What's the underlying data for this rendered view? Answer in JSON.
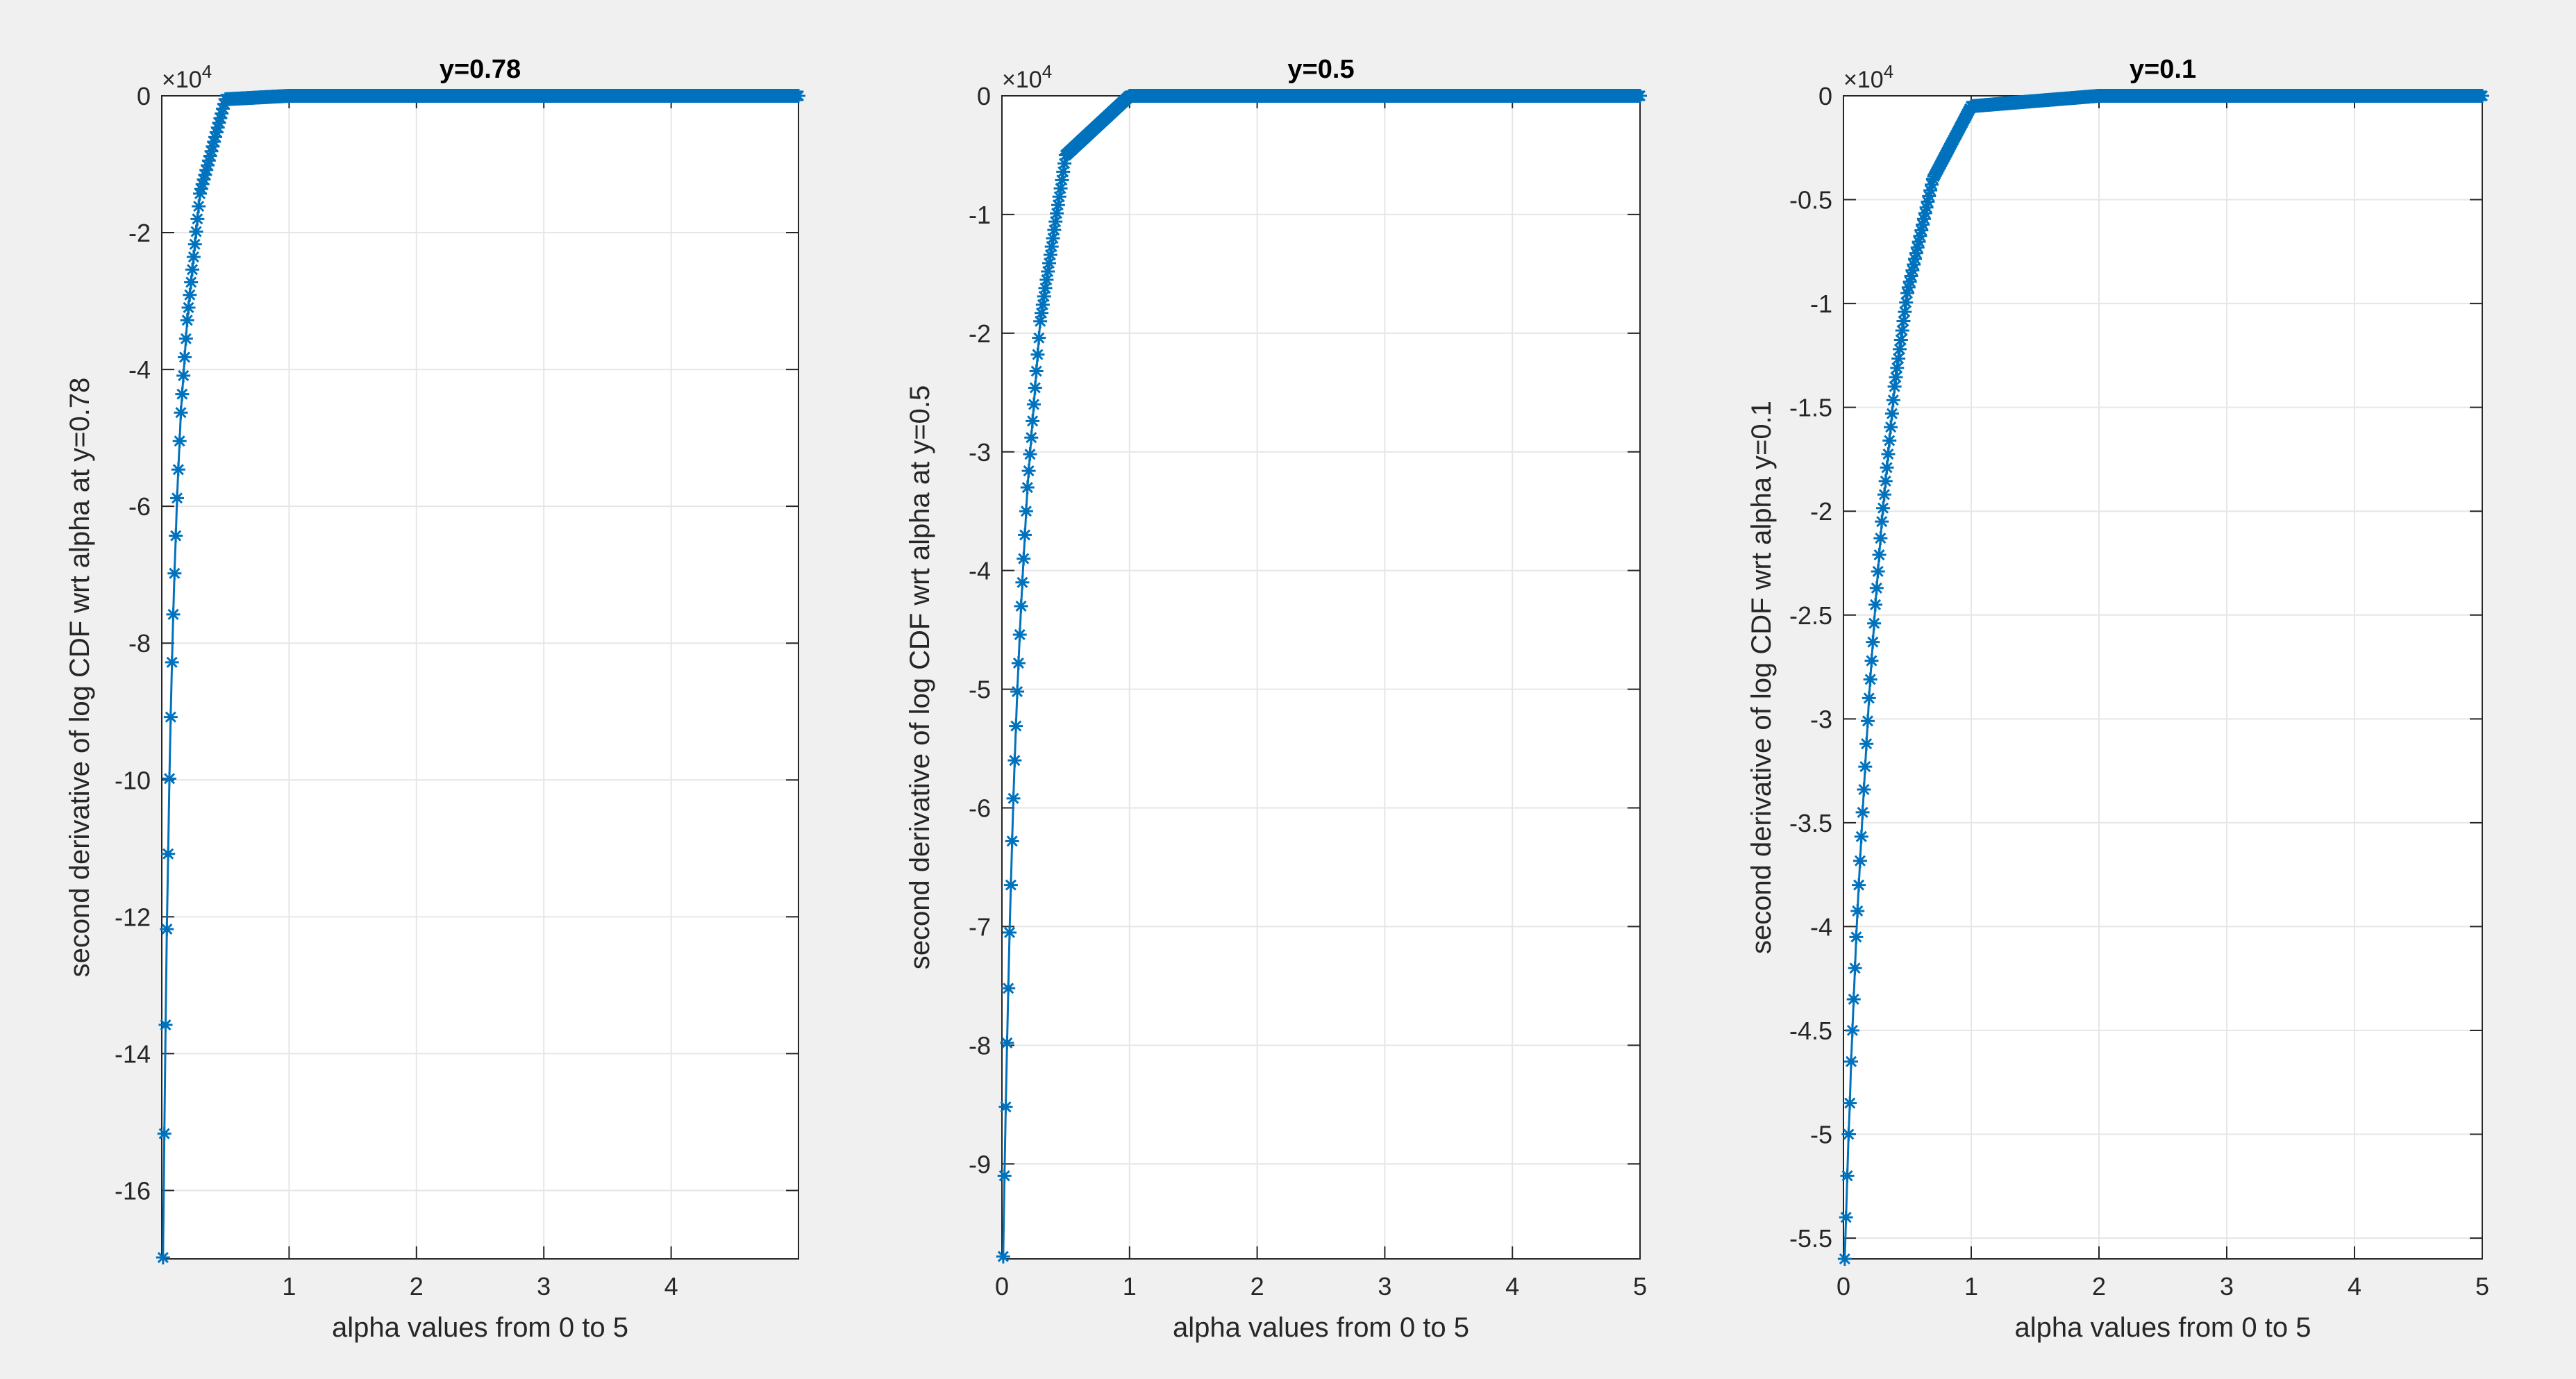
{
  "figure": {
    "background": "#f0f0f0",
    "axes_background": "#ffffff",
    "series_color": "#0072bd"
  },
  "chart_data": [
    {
      "type": "line",
      "marker": "asterisk",
      "title": "y=0.78",
      "xlabel": "alpha values from 0 to 5",
      "ylabel": "second derivative of log CDF wrt alpha at y=0.78",
      "exponent_label": "×10",
      "exponent_power": "4",
      "xlim": [
        0,
        5
      ],
      "ylim": [
        -17,
        0
      ],
      "xticks": [
        1,
        2,
        3,
        4
      ],
      "xtick_labels": [
        "1",
        "2",
        "3",
        "4"
      ],
      "yticks": [
        0,
        -2,
        -4,
        -6,
        -8,
        -10,
        -12,
        -14,
        -16
      ],
      "ytick_labels": [
        "0",
        "-2",
        "-4",
        "-6",
        "-8",
        "-10",
        "-12",
        "-14",
        "-16"
      ],
      "grid": true,
      "series": [
        {
          "x": [
            0.01,
            0.02,
            0.03,
            0.04,
            0.05,
            0.06,
            0.07,
            0.08,
            0.09,
            0.1,
            0.12,
            0.15,
            0.2,
            0.3,
            0.5,
            1.0,
            2.0,
            3.0,
            4.0,
            5.0
          ],
          "y": [
            -16.98,
            -15.17,
            -13.58,
            -12.18,
            -11.08,
            -9.98,
            -9.08,
            -8.28,
            -7.58,
            -6.98,
            -5.88,
            -4.63,
            -3.28,
            -1.43,
            -0.05,
            0,
            0,
            0,
            0,
            0
          ]
        }
      ]
    },
    {
      "type": "line",
      "marker": "asterisk",
      "title": "y=0.5",
      "xlabel": "alpha values from 0 to 5",
      "ylabel": "second derivative of log CDF wrt alpha at y=0.5",
      "exponent_label": "×10",
      "exponent_power": "4",
      "xlim": [
        0,
        5
      ],
      "ylim": [
        -9.8,
        0
      ],
      "xticks": [
        0,
        1,
        2,
        3,
        4,
        5
      ],
      "xtick_labels": [
        "0",
        "1",
        "2",
        "3",
        "4",
        "5"
      ],
      "yticks": [
        0,
        -1,
        -2,
        -3,
        -4,
        -5,
        -6,
        -7,
        -8,
        -9
      ],
      "ytick_labels": [
        "0",
        "-1",
        "-2",
        "-3",
        "-4",
        "-5",
        "-6",
        "-7",
        "-8",
        "-9"
      ],
      "grid": true,
      "series": [
        {
          "x": [
            0.01,
            0.02,
            0.03,
            0.04,
            0.05,
            0.06,
            0.07,
            0.08,
            0.09,
            0.1,
            0.12,
            0.15,
            0.2,
            0.3,
            0.5,
            1.0,
            2.0,
            3.0,
            4.0,
            5.0
          ],
          "y": [
            -9.78,
            -9.1,
            -8.52,
            -7.98,
            -7.52,
            -7.05,
            -6.65,
            -6.28,
            -5.92,
            -5.6,
            -5.02,
            -4.3,
            -3.3,
            -1.9,
            -0.5,
            0,
            0,
            0,
            0,
            0
          ]
        }
      ]
    },
    {
      "type": "line",
      "marker": "asterisk",
      "title": "y=0.1",
      "xlabel": "alpha values from 0 to 5",
      "ylabel": "second derivative of log CDF wrt alpha  y=0.1",
      "exponent_label": "×10",
      "exponent_power": "4",
      "xlim": [
        0,
        5
      ],
      "ylim": [
        -5.6,
        0
      ],
      "xticks": [
        0,
        1,
        2,
        3,
        4,
        5
      ],
      "xtick_labels": [
        "0",
        "1",
        "2",
        "3",
        "4",
        "5"
      ],
      "yticks": [
        0,
        -0.5,
        -1,
        -1.5,
        -2,
        -2.5,
        -3,
        -3.5,
        -4,
        -4.5,
        -5,
        -5.5
      ],
      "ytick_labels": [
        "0",
        "-0.5",
        "-1",
        "-1.5",
        "-2",
        "-2.5",
        "-3",
        "-3.5",
        "-4",
        "-4.5",
        "-5",
        "-5.5"
      ],
      "grid": true,
      "series": [
        {
          "x": [
            0.01,
            0.02,
            0.03,
            0.04,
            0.05,
            0.06,
            0.07,
            0.08,
            0.09,
            0.1,
            0.12,
            0.15,
            0.2,
            0.25,
            0.3,
            0.4,
            0.5,
            0.7,
            1.0,
            2.0,
            3.0,
            4.0,
            5.0
          ],
          "y": [
            -5.6,
            -5.4,
            -5.2,
            -5.0,
            -4.85,
            -4.65,
            -4.5,
            -4.35,
            -4.2,
            -4.05,
            -3.8,
            -3.45,
            -2.9,
            -2.45,
            -2.05,
            -1.4,
            -0.95,
            -0.4,
            -0.05,
            0,
            0,
            0,
            0
          ]
        }
      ]
    }
  ]
}
